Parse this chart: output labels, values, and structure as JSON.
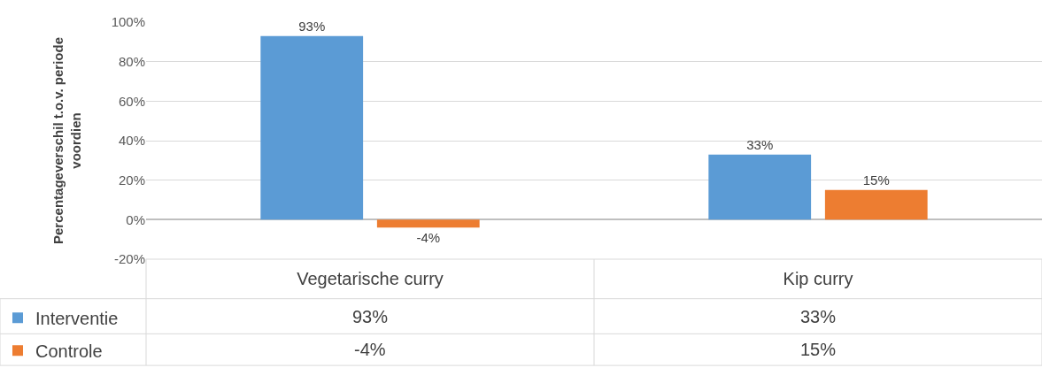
{
  "chart_data": {
    "type": "bar",
    "ylabel": "Percentageverschil t.o.v. periode voordien",
    "categories": [
      "Vegetarische curry",
      "Kip curry"
    ],
    "series": [
      {
        "name": "Interventie",
        "color": "#5b9bd5",
        "values": [
          93,
          33
        ],
        "value_labels": [
          "93%",
          "33%"
        ]
      },
      {
        "name": "Controle",
        "color": "#ed7d31",
        "values": [
          -4,
          15
        ],
        "value_labels": [
          "-4%",
          "15%"
        ]
      }
    ],
    "ylim": [
      -20,
      100
    ],
    "yticks": [
      {
        "value": -20,
        "label": "-20%"
      },
      {
        "value": 0,
        "label": "0%"
      },
      {
        "value": 20,
        "label": "20%"
      },
      {
        "value": 40,
        "label": "40%"
      },
      {
        "value": 60,
        "label": "60%"
      },
      {
        "value": 80,
        "label": "80%"
      },
      {
        "value": 100,
        "label": "100%"
      }
    ],
    "grid": "y",
    "legend": "bottom left"
  }
}
